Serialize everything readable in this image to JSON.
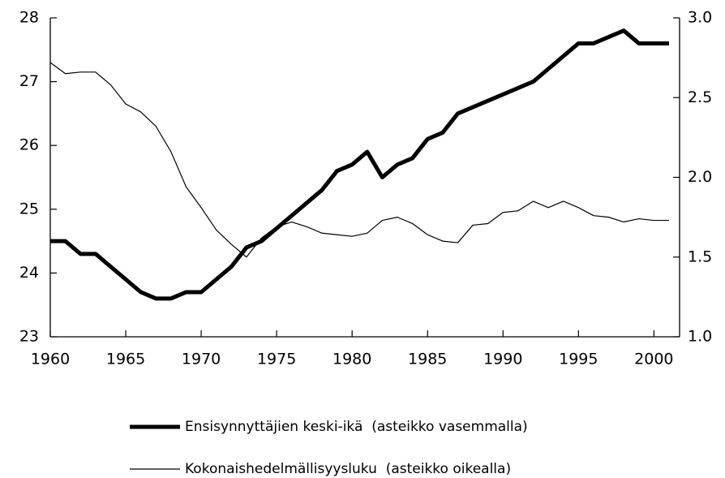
{
  "chart_data": {
    "type": "line",
    "x": [
      1960,
      1961,
      1962,
      1963,
      1964,
      1965,
      1966,
      1967,
      1968,
      1969,
      1970,
      1971,
      1972,
      1973,
      1974,
      1975,
      1976,
      1977,
      1978,
      1979,
      1980,
      1981,
      1982,
      1983,
      1984,
      1985,
      1986,
      1987,
      1988,
      1989,
      1990,
      1991,
      1992,
      1993,
      1994,
      1995,
      1996,
      1997,
      1998,
      1999,
      2000,
      2001
    ],
    "xlim": [
      1960,
      2001.7
    ],
    "xticks": [
      1960,
      1965,
      1970,
      1975,
      1980,
      1985,
      1990,
      1995,
      2000
    ],
    "ylim": [
      23,
      28
    ],
    "yticks": [
      23,
      24,
      25,
      26,
      27,
      28
    ],
    "y2lim": [
      1.0,
      3.0
    ],
    "y2ticks": [
      {
        "value": 1.0,
        "label": "1.0"
      },
      1.5,
      {
        "value": 2.0,
        "label": "2.0"
      },
      2.5,
      {
        "value": 3.0,
        "label": "3.0"
      }
    ],
    "legend": "bottom",
    "series": [
      {
        "name": "Ensisynnyttäjien keski-ikä  (asteikko vasemmalla)",
        "color": "#000000",
        "width": 5,
        "values": [
          24.5,
          24.5,
          24.3,
          24.3,
          24.1,
          23.9,
          23.7,
          23.6,
          23.6,
          23.7,
          23.7,
          23.9,
          24.1,
          24.4,
          24.5,
          24.7,
          24.9,
          25.1,
          25.3,
          25.6,
          25.7,
          25.9,
          25.5,
          25.7,
          25.8,
          26.1,
          26.2,
          26.5,
          26.6,
          26.7,
          26.8,
          26.9,
          27.0,
          27.2,
          27.4,
          27.6,
          27.6,
          27.7,
          27.8,
          27.6,
          27.6,
          27.6
        ]
      },
      {
        "name": "Kokonaishedelmällisyysluku  (asteikko oikealla)",
        "color": "#000000",
        "width": 1.2,
        "axis": "y2",
        "values": [
          2.72,
          2.65,
          2.66,
          2.66,
          2.58,
          2.46,
          2.41,
          2.32,
          2.16,
          1.94,
          1.81,
          1.67,
          1.58,
          1.5,
          1.62,
          1.69,
          1.72,
          1.69,
          1.65,
          1.64,
          1.63,
          1.65,
          1.73,
          1.75,
          1.71,
          1.64,
          1.6,
          1.59,
          1.7,
          1.71,
          1.78,
          1.79,
          1.85,
          1.81,
          1.85,
          1.81,
          1.76,
          1.75,
          1.72,
          1.74,
          1.73,
          1.73
        ]
      }
    ]
  }
}
